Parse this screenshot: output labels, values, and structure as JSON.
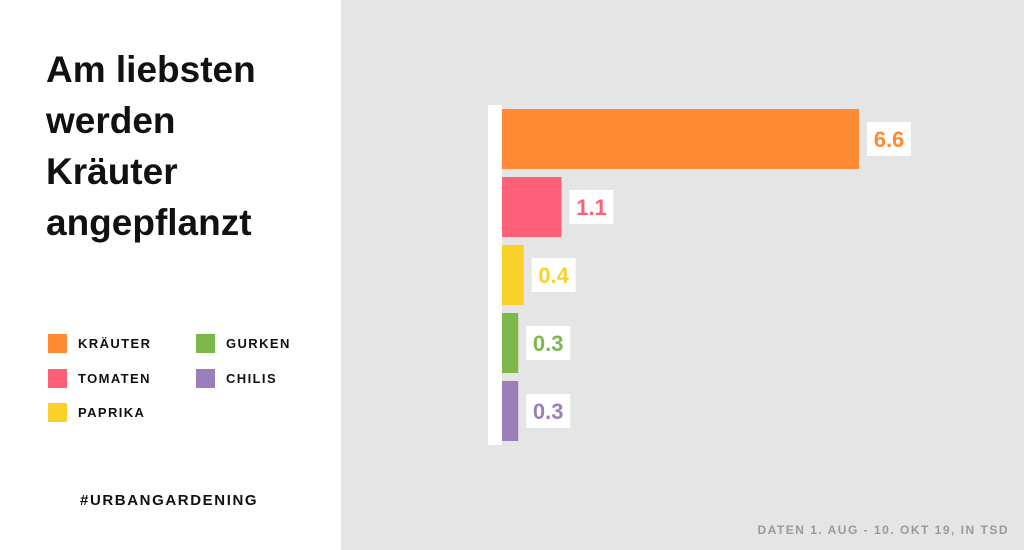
{
  "title_lines": [
    "Am liebsten",
    "werden",
    "Kräuter",
    "angepflanzt"
  ],
  "hashtag": "#URBANGARDENING",
  "source_note": "DATEN 1. AUG - 10. OKT 19, IN TSD",
  "colors": {
    "kraeuter": "#fe8a34",
    "tomaten": "#fe6079",
    "paprika": "#fad129",
    "gurken": "#7db94a",
    "chilis": "#9a7fba",
    "panel_background": "#e5e5e5"
  },
  "legend": [
    {
      "label": "KRÄUTER",
      "color": "#fe8a34"
    },
    {
      "label": "TOMATEN",
      "color": "#fe6079"
    },
    {
      "label": "PAPRIKA",
      "color": "#fad129"
    },
    {
      "label": "GURKEN",
      "color": "#7db94a"
    },
    {
      "label": "CHILIS",
      "color": "#9a7fba"
    }
  ],
  "chart_data": {
    "type": "bar",
    "orientation": "horizontal",
    "title": "Am liebsten werden Kräuter angepflanzt",
    "categories": [
      "KRÄUTER",
      "TOMATEN",
      "PAPRIKA",
      "GURKEN",
      "CHILIS"
    ],
    "values": [
      6.6,
      1.1,
      0.4,
      0.3,
      0.3
    ],
    "value_labels": [
      "6.6",
      "1.1",
      "0.4",
      "0.3",
      "0.3"
    ],
    "colors": [
      "#fe8a34",
      "#fe6079",
      "#fad129",
      "#7db94a",
      "#9a7fba"
    ],
    "unit": "in Tsd",
    "xlim": [
      0,
      6.6
    ],
    "grid": false,
    "legend_position": "left"
  }
}
